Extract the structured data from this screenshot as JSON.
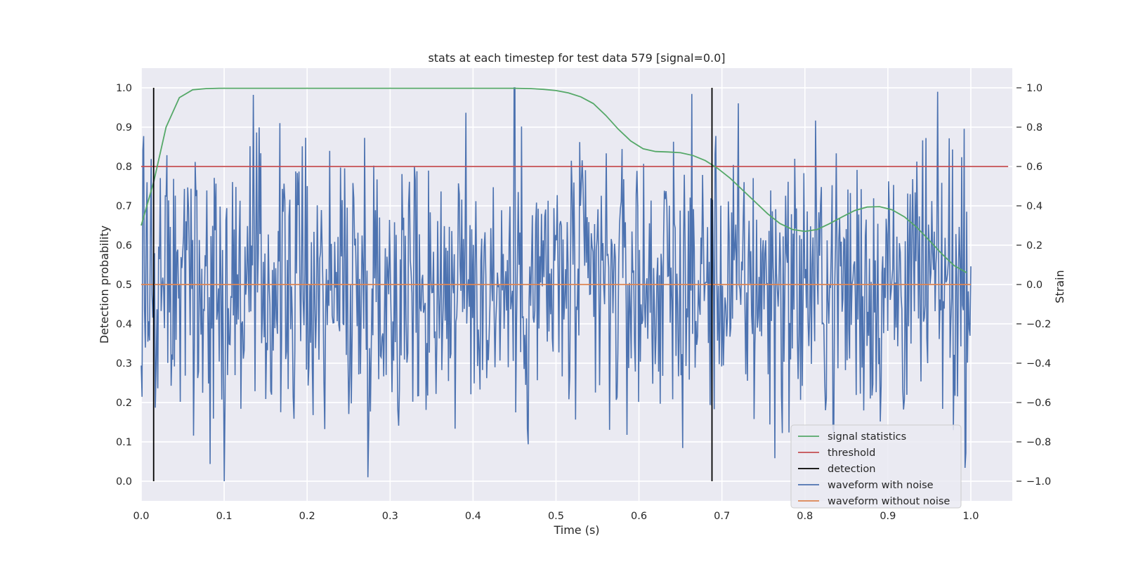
{
  "chart_data": {
    "type": "line",
    "title": "stats at each timestep for test data 579 [signal=0.0]",
    "xlabel": "Time (s)",
    "ylabel_left": "Detection probability",
    "ylabel_right": "Strain",
    "xlim": [
      0.0,
      1.05
    ],
    "ylim_left": [
      -0.05,
      1.05
    ],
    "ylim_right": [
      -1.1,
      1.1
    ],
    "x_ticks": [
      0.0,
      0.1,
      0.2,
      0.3,
      0.4,
      0.5,
      0.6,
      0.7,
      0.8,
      0.9,
      1.0
    ],
    "x_tick_labels": [
      "0.0",
      "0.1",
      "0.2",
      "0.3",
      "0.4",
      "0.5",
      "0.6",
      "0.7",
      "0.8",
      "0.9",
      "1.0"
    ],
    "y_left_ticks": [
      0.0,
      0.1,
      0.2,
      0.3,
      0.4,
      0.5,
      0.6,
      0.7,
      0.8,
      0.9,
      1.0
    ],
    "y_left_tick_labels": [
      "0.0",
      "0.1",
      "0.2",
      "0.3",
      "0.4",
      "0.5",
      "0.6",
      "0.7",
      "0.8",
      "0.9",
      "1.0"
    ],
    "y_right_ticks": [
      -1.0,
      -0.8,
      -0.6,
      -0.4,
      -0.2,
      0.0,
      0.2,
      0.4,
      0.6,
      0.8,
      1.0
    ],
    "y_right_tick_labels": [
      "−1.0",
      "−0.8",
      "−0.6",
      "−0.4",
      "−0.2",
      "0.0",
      "0.2",
      "0.4",
      "0.6",
      "0.8",
      "1.0"
    ],
    "grid": true,
    "legend_position": "lower-right",
    "series": [
      {
        "name": "signal statistics",
        "color": "#55a868",
        "axis": "left",
        "x": [
          0.0,
          0.015,
          0.03,
          0.046,
          0.062,
          0.078,
          0.094,
          0.11,
          0.2,
          0.3,
          0.4,
          0.45,
          0.47,
          0.485,
          0.5,
          0.515,
          0.53,
          0.545,
          0.56,
          0.575,
          0.59,
          0.605,
          0.62,
          0.635,
          0.65,
          0.665,
          0.68,
          0.695,
          0.71,
          0.725,
          0.74,
          0.755,
          0.77,
          0.785,
          0.8,
          0.815,
          0.83,
          0.845,
          0.86,
          0.875,
          0.89,
          0.905,
          0.92,
          0.935,
          0.95,
          0.965,
          0.98,
          0.995
        ],
        "y": [
          0.65,
          0.76,
          0.9,
          0.975,
          0.995,
          0.998,
          0.999,
          0.999,
          0.999,
          0.999,
          0.999,
          0.999,
          0.998,
          0.996,
          0.993,
          0.987,
          0.977,
          0.96,
          0.93,
          0.895,
          0.865,
          0.845,
          0.838,
          0.837,
          0.835,
          0.828,
          0.815,
          0.795,
          0.77,
          0.74,
          0.71,
          0.68,
          0.655,
          0.64,
          0.635,
          0.64,
          0.655,
          0.672,
          0.688,
          0.697,
          0.698,
          0.69,
          0.672,
          0.645,
          0.612,
          0.578,
          0.548,
          0.53
        ]
      },
      {
        "name": "threshold",
        "color": "#c44e52",
        "axis": "left",
        "x": [
          0.0,
          1.045
        ],
        "y": [
          0.8,
          0.8
        ]
      },
      {
        "name": "waveform with noise",
        "color": "#4c72b0",
        "axis": "right",
        "note": "dense noisy strain trace, ~1000 samples between x=0 and x=1.0, amplitude roughly within [-1.0, 1.0]; max +1.0 near x=0.45, min -1.0 near x=0.10",
        "x_range": [
          0.0,
          1.0
        ],
        "samples": 1000
      },
      {
        "name": "waveform without noise",
        "color": "#dd8452",
        "axis": "right",
        "x": [
          0.0,
          1.0
        ],
        "y": [
          0.0,
          0.0
        ]
      }
    ],
    "detections": [
      {
        "x": 0.015,
        "y_from": 0.0,
        "y_to": 1.0
      },
      {
        "x": 0.688,
        "y_from": 0.0,
        "y_to": 1.0
      }
    ],
    "legend": [
      {
        "label": "signal statistics",
        "color": "#55a868"
      },
      {
        "label": "threshold",
        "color": "#c44e52"
      },
      {
        "label": "detection",
        "color": "#000000"
      },
      {
        "label": "waveform with noise",
        "color": "#4c72b0"
      },
      {
        "label": "waveform without noise",
        "color": "#dd8452"
      }
    ],
    "colors": {
      "plot_background": "#eaeaf2",
      "grid": "#ffffff",
      "text": "#262626",
      "detection": "#000000"
    }
  }
}
